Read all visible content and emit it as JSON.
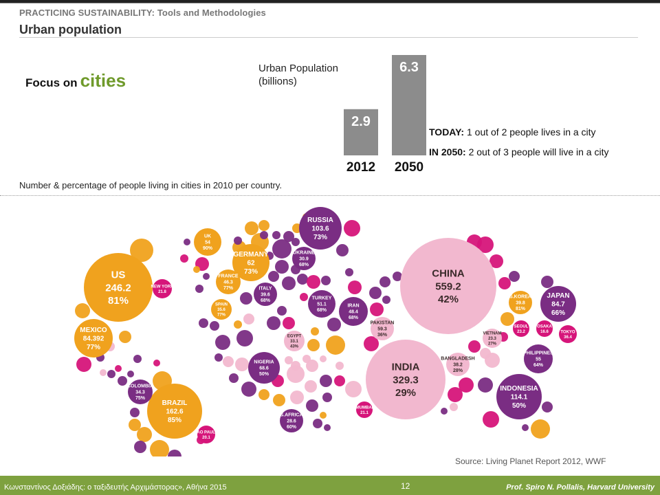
{
  "header": {
    "course_title": "PRACTICING SUSTAINABILITY: Tools and Methodologies",
    "page_title": "Urban population"
  },
  "focus": {
    "prefix": "Focus on",
    "highlight": "cities"
  },
  "chart_data": {
    "type": "bar",
    "title": "Urban Population\n(billions)",
    "categories": [
      "2012",
      "2050"
    ],
    "values": [
      2.9,
      6.3
    ],
    "ylim": [
      0,
      6.3
    ]
  },
  "facts": {
    "today_label": "TODAY:",
    "today_text": "1 out of 2 people lives in a city",
    "future_label": "IN 2050:",
    "future_text": "2 out of 3 people will live in a city"
  },
  "map_caption": "Number & percentage of people living in cities in 2010 per country.",
  "colors": {
    "bar": "#8c8c8c",
    "americas": "#f0a21e",
    "europe_asia": "#7a2d83",
    "asia": "#f2b8cf",
    "east": "#d6157a",
    "footer": "#7ea13f",
    "accent": "#6f9a2b"
  },
  "bubbles": [
    {
      "lines": [
        "US",
        "246.2",
        "81%"
      ],
      "color": "americas"
    },
    {
      "lines": [
        "MEXICO",
        "84.392",
        "77%"
      ],
      "color": "americas"
    },
    {
      "lines": [
        "BRAZIL",
        "162.6",
        "85%"
      ],
      "color": "americas"
    },
    {
      "lines": [
        "CHINA",
        "559.2",
        "42%"
      ],
      "color": "asia"
    },
    {
      "lines": [
        "INDIA",
        "329.3",
        "29%"
      ],
      "color": "asia"
    },
    {
      "lines": [
        "RUSSIA",
        "103.6",
        "73%"
      ],
      "color": "europe_asia"
    },
    {
      "lines": [
        "INDONESIA",
        "114.1",
        "50%"
      ],
      "color": "europe_asia"
    },
    {
      "lines": [
        "JAPAN",
        "84.7",
        "66%"
      ],
      "color": "europe_asia"
    },
    {
      "lines": [
        "NIGERIA",
        "68.6",
        "50%"
      ],
      "color": "europe_asia"
    },
    {
      "lines": [
        "GERMANY",
        "62",
        "73%"
      ],
      "color": "americas"
    },
    {
      "lines": [
        "TURKEY",
        "51.1",
        "68%"
      ],
      "color": "europe_asia"
    },
    {
      "lines": [
        "IRAN",
        "48.4",
        "68%"
      ],
      "color": "europe_asia"
    },
    {
      "lines": [
        "PHILIPPINES",
        "55",
        "64%"
      ],
      "color": "europe_asia"
    },
    {
      "lines": [
        "PAKISTAN",
        "59.3",
        "36%"
      ],
      "color": "asia"
    },
    {
      "lines": [
        "EGYPT",
        "33.1",
        "43%"
      ],
      "color": "asia"
    },
    {
      "lines": [
        "COLOMBIA",
        "34.3",
        "75%"
      ],
      "color": "europe_asia"
    },
    {
      "lines": [
        "UK",
        "54",
        "90%"
      ],
      "color": "americas"
    },
    {
      "lines": [
        "FRANCE",
        "46.3",
        "77%"
      ],
      "color": "americas"
    },
    {
      "lines": [
        "ITALY",
        "39.6",
        "68%"
      ],
      "color": "europe_asia"
    },
    {
      "lines": [
        "UKRAINE",
        "30.9",
        "68%"
      ],
      "color": "europe_asia"
    },
    {
      "lines": [
        "SPAIN",
        "35.6",
        "77%"
      ],
      "color": "americas"
    },
    {
      "lines": [
        "VIETNAM",
        "23.3",
        "27%"
      ],
      "color": "asia"
    },
    {
      "lines": [
        "BANGLADESH",
        "38.2",
        "28%"
      ],
      "color": "asia"
    },
    {
      "lines": [
        "S.KOREA",
        "39.8",
        "81%"
      ],
      "color": "americas"
    },
    {
      "lines": [
        "S.AFRICA",
        "28.6",
        "60%"
      ],
      "color": "europe_asia"
    },
    {
      "lines": [
        "NEW YORK",
        "21.8"
      ],
      "color": "east"
    },
    {
      "lines": [
        "TOKYO",
        "36.4"
      ],
      "color": "east"
    },
    {
      "lines": [
        "SEOUL",
        "23.2"
      ],
      "color": "east"
    },
    {
      "lines": [
        "MUMBAI",
        "21.1"
      ],
      "color": "east"
    },
    {
      "lines": [
        "SAO PAULO",
        "20.1"
      ],
      "color": "east"
    },
    {
      "lines": [
        "OSAKA",
        "16.6"
      ],
      "color": "east"
    }
  ],
  "source": "Source: Living Planet Report 2012, WWF",
  "footer": {
    "left": "Κωνσταντίνος Δοξιάδης: ο ταξιδευτής Αρχιμάστορας», Αθήνα 2015",
    "page_number": "12",
    "right": "Prof. Spiro N. Pollalis, Harvard University"
  }
}
